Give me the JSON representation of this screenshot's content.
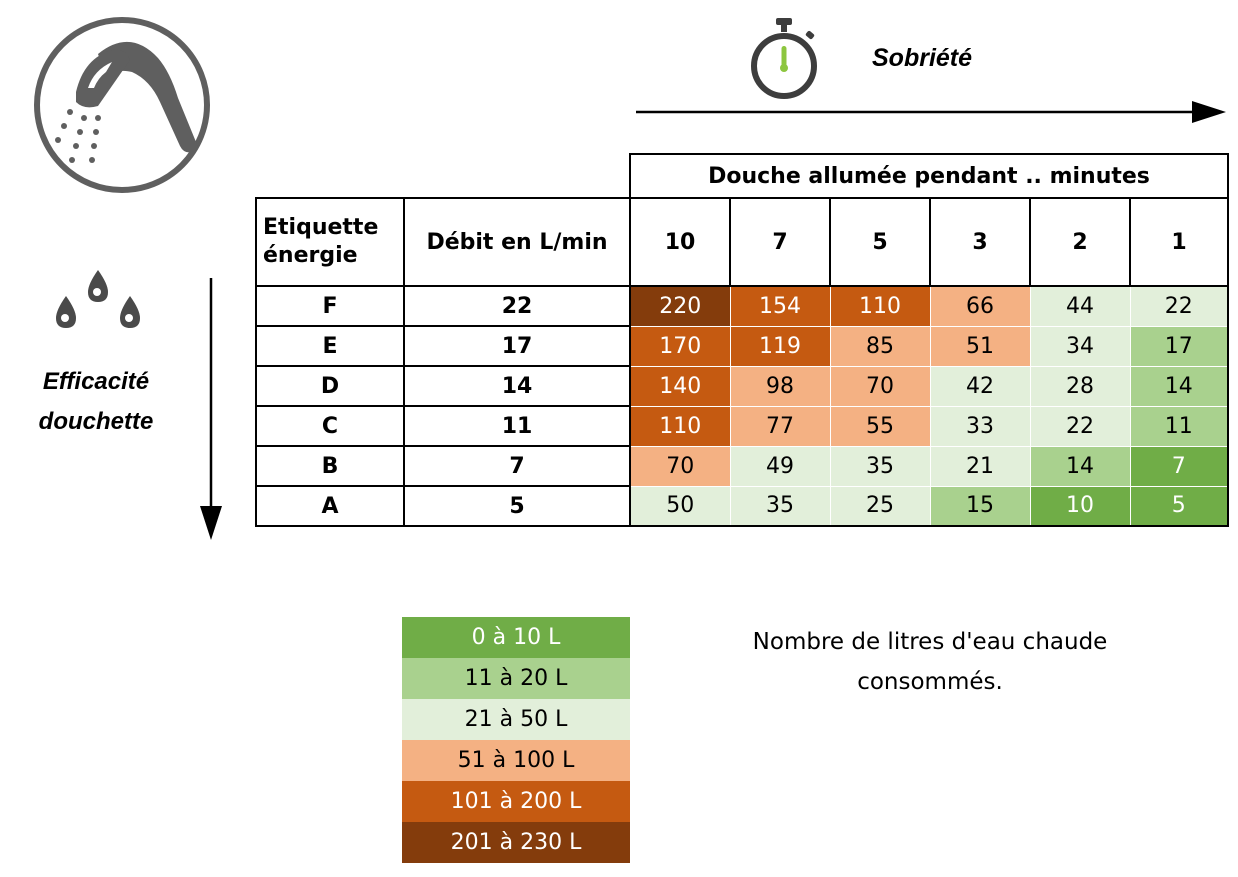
{
  "header": {
    "sobriete_label": "Sobriété"
  },
  "side": {
    "efficacite_line1": "Efficacité",
    "efficacite_line2": "douchette"
  },
  "table": {
    "title": "Douche allumée pendant .. minutes",
    "col_label_line1": "Etiquette",
    "col_label_line2": "énergie",
    "debit_label": "Débit en L/min",
    "minutes": [
      "10",
      "7",
      "5",
      "3",
      "2",
      "1"
    ],
    "rows": [
      {
        "label": "F",
        "debit": "22",
        "values": [
          "220",
          "154",
          "110",
          "66",
          "44",
          "22"
        ]
      },
      {
        "label": "E",
        "debit": "17",
        "values": [
          "170",
          "119",
          "85",
          "51",
          "34",
          "17"
        ]
      },
      {
        "label": "D",
        "debit": "14",
        "values": [
          "140",
          "98",
          "70",
          "42",
          "28",
          "14"
        ]
      },
      {
        "label": "C",
        "debit": "11",
        "values": [
          "110",
          "77",
          "55",
          "33",
          "22",
          "11"
        ]
      },
      {
        "label": "B",
        "debit": "7",
        "values": [
          "70",
          "49",
          "35",
          "21",
          "14",
          "7"
        ]
      },
      {
        "label": "A",
        "debit": "5",
        "values": [
          "50",
          "35",
          "25",
          "15",
          "10",
          "5"
        ]
      }
    ]
  },
  "legend": {
    "items": [
      {
        "label": "0 à 10 L",
        "min": 0,
        "max": 10,
        "bg": "#70AD47",
        "fg": "#ffffff"
      },
      {
        "label": "11 à 20 L",
        "min": 11,
        "max": 20,
        "bg": "#A9D18E",
        "fg": "#000000"
      },
      {
        "label": "21 à 50 L",
        "min": 21,
        "max": 50,
        "bg": "#E2EFDA",
        "fg": "#000000"
      },
      {
        "label": "51 à 100 L",
        "min": 51,
        "max": 100,
        "bg": "#F4B183",
        "fg": "#000000"
      },
      {
        "label": "101 à 200 L",
        "min": 101,
        "max": 200,
        "bg": "#C55A11",
        "fg": "#ffffff"
      },
      {
        "label": "201 à 230 L",
        "min": 201,
        "max": 230,
        "bg": "#843C0C",
        "fg": "#ffffff"
      }
    ],
    "caption_line1": "Nombre de litres d'eau chaude",
    "caption_line2": "consommés."
  },
  "icons": {
    "shower": "shower-head-icon",
    "stopwatch": "stopwatch-icon",
    "drops": "water-drops-icon"
  },
  "colors": {
    "icon_gray": "#5f5f5f",
    "stopwatch_hand": "#8DC63F"
  }
}
